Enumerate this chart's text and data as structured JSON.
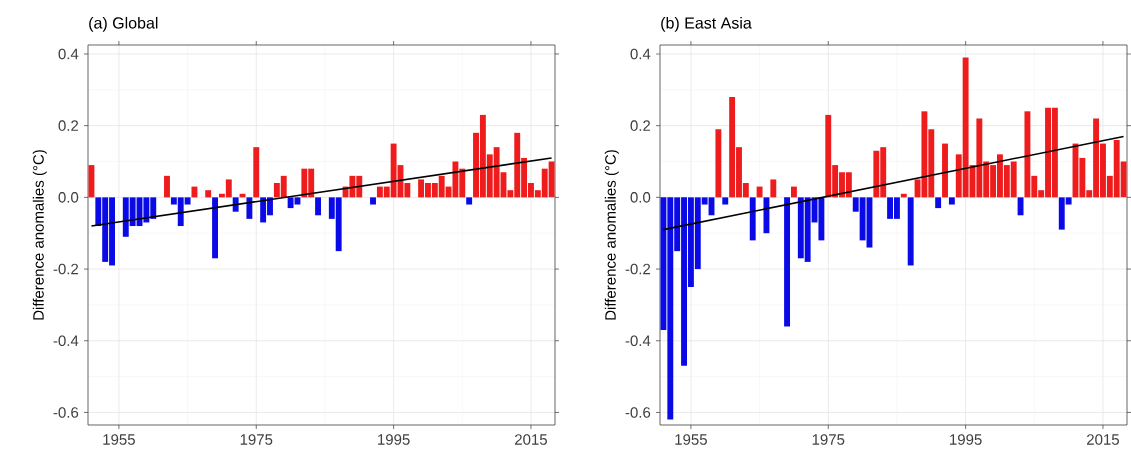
{
  "chart_data": [
    {
      "type": "bar",
      "title": "(a) Global",
      "ylabel": "Difference anomalies (°C)",
      "grid": true,
      "xlim": [
        1950.5,
        2018.5
      ],
      "xticks": [
        1955,
        1975,
        1995,
        2015
      ],
      "ylim": [
        -0.635,
        0.425
      ],
      "yticks": [
        -0.6,
        -0.4,
        -0.2,
        {
          "value": 0,
          "label": "0.0"
        },
        0.2,
        0.4
      ],
      "series": [
        {
          "x": [
            1951,
            1952,
            1953,
            1954,
            1955,
            1956,
            1957,
            1958,
            1959,
            1960,
            1961,
            1962,
            1963,
            1964,
            1965,
            1966,
            1967,
            1968,
            1969,
            1970,
            1971,
            1972,
            1973,
            1974,
            1975,
            1976,
            1977,
            1978,
            1979,
            1980,
            1981,
            1982,
            1983,
            1984,
            1985,
            1986,
            1987,
            1988,
            1989,
            1990,
            1991,
            1992,
            1993,
            1994,
            1995,
            1996,
            1997,
            1998,
            1999,
            2000,
            2001,
            2002,
            2003,
            2004,
            2005,
            2006,
            2007,
            2008,
            2009,
            2010,
            2011,
            2012,
            2013,
            2014,
            2015,
            2016,
            2017,
            2018
          ],
          "values": [
            0.09,
            -0.08,
            -0.18,
            -0.19,
            0.0,
            -0.11,
            -0.08,
            -0.08,
            -0.07,
            -0.06,
            0.0,
            0.06,
            -0.02,
            -0.08,
            -0.02,
            0.03,
            0.0,
            0.02,
            -0.17,
            0.01,
            0.05,
            -0.04,
            0.01,
            -0.06,
            0.14,
            -0.07,
            -0.05,
            0.04,
            0.06,
            -0.03,
            -0.02,
            0.08,
            0.08,
            -0.05,
            0.0,
            -0.06,
            -0.15,
            0.03,
            0.06,
            0.06,
            0.0,
            -0.02,
            0.03,
            0.03,
            0.15,
            0.09,
            0.04,
            0.0,
            0.05,
            0.04,
            0.04,
            0.06,
            0.03,
            0.1,
            0.08,
            -0.02,
            0.18,
            0.23,
            0.12,
            0.14,
            0.07,
            0.02,
            0.18,
            0.11,
            0.04,
            0.02,
            0.08,
            0.1
          ],
          "colors": [
            "#ee1c1c",
            "#0a0ae6",
            "#0a0ae6",
            "#0a0ae6",
            "#ee1c1c",
            "#0a0ae6",
            "#0a0ae6",
            "#0a0ae6",
            "#0a0ae6",
            "#0a0ae6",
            "#ee1c1c",
            "#ee1c1c",
            "#0a0ae6",
            "#0a0ae6",
            "#0a0ae6",
            "#ee1c1c",
            "#ee1c1c",
            "#ee1c1c",
            "#0a0ae6",
            "#ee1c1c",
            "#ee1c1c",
            "#0a0ae6",
            "#ee1c1c",
            "#0a0ae6",
            "#ee1c1c",
            "#0a0ae6",
            "#0a0ae6",
            "#ee1c1c",
            "#ee1c1c",
            "#0a0ae6",
            "#0a0ae6",
            "#ee1c1c",
            "#ee1c1c",
            "#0a0ae6",
            "#ee1c1c",
            "#0a0ae6",
            "#0a0ae6",
            "#ee1c1c",
            "#ee1c1c",
            "#ee1c1c",
            "#ee1c1c",
            "#0a0ae6",
            "#ee1c1c",
            "#ee1c1c",
            "#ee1c1c",
            "#ee1c1c",
            "#ee1c1c",
            "#ee1c1c",
            "#ee1c1c",
            "#ee1c1c",
            "#ee1c1c",
            "#ee1c1c",
            "#ee1c1c",
            "#ee1c1c",
            "#ee1c1c",
            "#0a0ae6",
            "#ee1c1c",
            "#ee1c1c",
            "#ee1c1c",
            "#ee1c1c",
            "#ee1c1c",
            "#ee1c1c",
            "#ee1c1c",
            "#ee1c1c",
            "#ee1c1c",
            "#ee1c1c",
            "#ee1c1c",
            "#ee1c1c"
          ]
        },
        {
          "type": "line",
          "x": [
            1951,
            2018
          ],
          "values": [
            -0.08,
            0.11
          ],
          "color": "#000000"
        }
      ]
    },
    {
      "type": "bar",
      "title": "(b) East Asia",
      "ylabel": "Difference anomalies (°C)",
      "grid": true,
      "xlim": [
        1950.5,
        2018.5
      ],
      "xticks": [
        1955,
        1975,
        1995,
        2015
      ],
      "ylim": [
        -0.635,
        0.425
      ],
      "yticks": [
        -0.6,
        -0.4,
        -0.2,
        {
          "value": 0,
          "label": "0.0"
        },
        0.2,
        0.4
      ],
      "series": [
        {
          "x": [
            1951,
            1952,
            1953,
            1954,
            1955,
            1956,
            1957,
            1958,
            1959,
            1960,
            1961,
            1962,
            1963,
            1964,
            1965,
            1966,
            1967,
            1968,
            1969,
            1970,
            1971,
            1972,
            1973,
            1974,
            1975,
            1976,
            1977,
            1978,
            1979,
            1980,
            1981,
            1982,
            1983,
            1984,
            1985,
            1986,
            1987,
            1988,
            1989,
            1990,
            1991,
            1992,
            1993,
            1994,
            1995,
            1996,
            1997,
            1998,
            1999,
            2000,
            2001,
            2002,
            2003,
            2004,
            2005,
            2006,
            2007,
            2008,
            2009,
            2010,
            2011,
            2012,
            2013,
            2014,
            2015,
            2016,
            2017,
            2018
          ],
          "values": [
            -0.37,
            -0.62,
            -0.15,
            -0.47,
            -0.25,
            -0.2,
            -0.02,
            -0.05,
            0.19,
            -0.02,
            0.28,
            0.14,
            0.04,
            -0.12,
            0.03,
            -0.1,
            0.05,
            0.0,
            -0.36,
            0.03,
            -0.17,
            -0.18,
            -0.07,
            -0.12,
            0.23,
            0.09,
            0.07,
            0.07,
            -0.04,
            -0.12,
            -0.14,
            0.13,
            0.14,
            -0.06,
            -0.06,
            0.01,
            -0.19,
            0.05,
            0.24,
            0.19,
            -0.03,
            0.15,
            -0.02,
            0.12,
            0.39,
            0.09,
            0.22,
            0.1,
            0.09,
            0.12,
            0.09,
            0.1,
            -0.05,
            0.24,
            0.06,
            0.02,
            0.25,
            0.25,
            -0.09,
            -0.02,
            0.15,
            0.11,
            0.02,
            0.22,
            0.15,
            0.06,
            0.16,
            0.1
          ],
          "colors": [
            "#0a0ae6",
            "#0a0ae6",
            "#0a0ae6",
            "#0a0ae6",
            "#0a0ae6",
            "#0a0ae6",
            "#0a0ae6",
            "#0a0ae6",
            "#ee1c1c",
            "#0a0ae6",
            "#ee1c1c",
            "#ee1c1c",
            "#ee1c1c",
            "#0a0ae6",
            "#ee1c1c",
            "#0a0ae6",
            "#ee1c1c",
            "#ee1c1c",
            "#0a0ae6",
            "#ee1c1c",
            "#0a0ae6",
            "#0a0ae6",
            "#0a0ae6",
            "#0a0ae6",
            "#ee1c1c",
            "#ee1c1c",
            "#ee1c1c",
            "#ee1c1c",
            "#0a0ae6",
            "#0a0ae6",
            "#0a0ae6",
            "#ee1c1c",
            "#ee1c1c",
            "#0a0ae6",
            "#0a0ae6",
            "#ee1c1c",
            "#0a0ae6",
            "#ee1c1c",
            "#ee1c1c",
            "#ee1c1c",
            "#0a0ae6",
            "#ee1c1c",
            "#0a0ae6",
            "#ee1c1c",
            "#ee1c1c",
            "#ee1c1c",
            "#ee1c1c",
            "#ee1c1c",
            "#ee1c1c",
            "#ee1c1c",
            "#ee1c1c",
            "#ee1c1c",
            "#0a0ae6",
            "#ee1c1c",
            "#ee1c1c",
            "#ee1c1c",
            "#ee1c1c",
            "#ee1c1c",
            "#0a0ae6",
            "#0a0ae6",
            "#ee1c1c",
            "#ee1c1c",
            "#ee1c1c",
            "#ee1c1c",
            "#ee1c1c",
            "#ee1c1c",
            "#ee1c1c",
            "#ee1c1c"
          ]
        },
        {
          "type": "line",
          "x": [
            1951,
            2018
          ],
          "values": [
            -0.09,
            0.17
          ],
          "color": "#000000"
        }
      ]
    }
  ]
}
